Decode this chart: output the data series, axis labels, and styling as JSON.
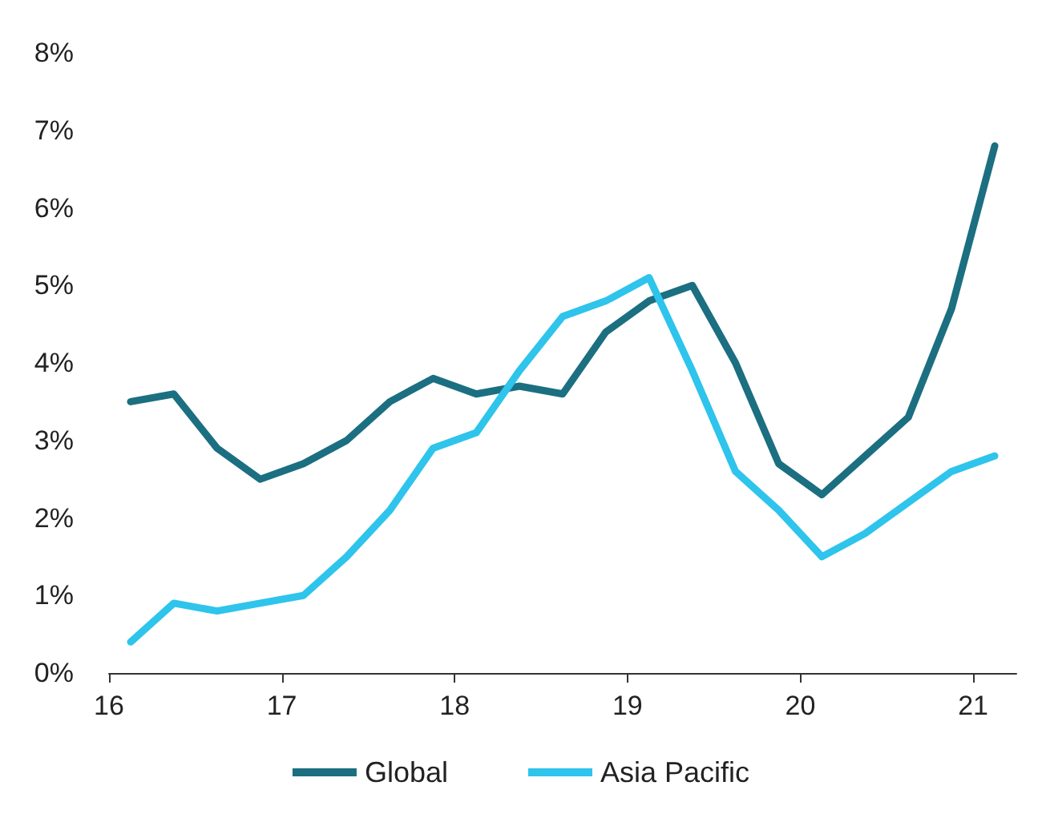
{
  "chart_data": {
    "type": "line",
    "x": [
      16.125,
      16.375,
      16.625,
      16.875,
      17.125,
      17.375,
      17.625,
      17.875,
      18.125,
      18.375,
      18.625,
      18.875,
      19.125,
      19.375,
      19.625,
      19.875,
      20.125,
      20.375,
      20.625,
      20.875,
      21.125
    ],
    "series": [
      {
        "name": "Global",
        "color": "#1b6f80",
        "values": [
          3.5,
          3.6,
          2.9,
          2.5,
          2.7,
          3.0,
          3.5,
          3.8,
          3.6,
          3.7,
          3.6,
          4.4,
          4.8,
          5.0,
          4.0,
          2.7,
          2.3,
          2.8,
          3.3,
          4.7,
          6.8
        ]
      },
      {
        "name": "Asia Pacific",
        "color": "#2ec4ec",
        "values": [
          0.4,
          0.9,
          0.8,
          0.9,
          1.0,
          1.5,
          2.1,
          2.9,
          3.1,
          3.9,
          4.6,
          4.8,
          5.1,
          3.9,
          2.6,
          2.1,
          1.5,
          1.8,
          2.2,
          2.6,
          2.8
        ]
      }
    ],
    "xlim": [
      16,
      21.25
    ],
    "xticks": [
      16,
      17,
      18,
      19,
      20,
      21
    ],
    "ylim": [
      0,
      8
    ],
    "yticks": [
      {
        "value": 0,
        "label": "0%"
      },
      {
        "value": 1,
        "label": "1%"
      },
      {
        "value": 2,
        "label": "2%"
      },
      {
        "value": 3,
        "label": "3%"
      },
      {
        "value": 4,
        "label": "4%"
      },
      {
        "value": 5,
        "label": "5%"
      },
      {
        "value": 6,
        "label": "6%"
      },
      {
        "value": 7,
        "label": "7%"
      },
      {
        "value": 8,
        "label": "8%"
      }
    ],
    "grid": false,
    "legend": "bottom",
    "marker": "none",
    "line_style": "solid"
  }
}
